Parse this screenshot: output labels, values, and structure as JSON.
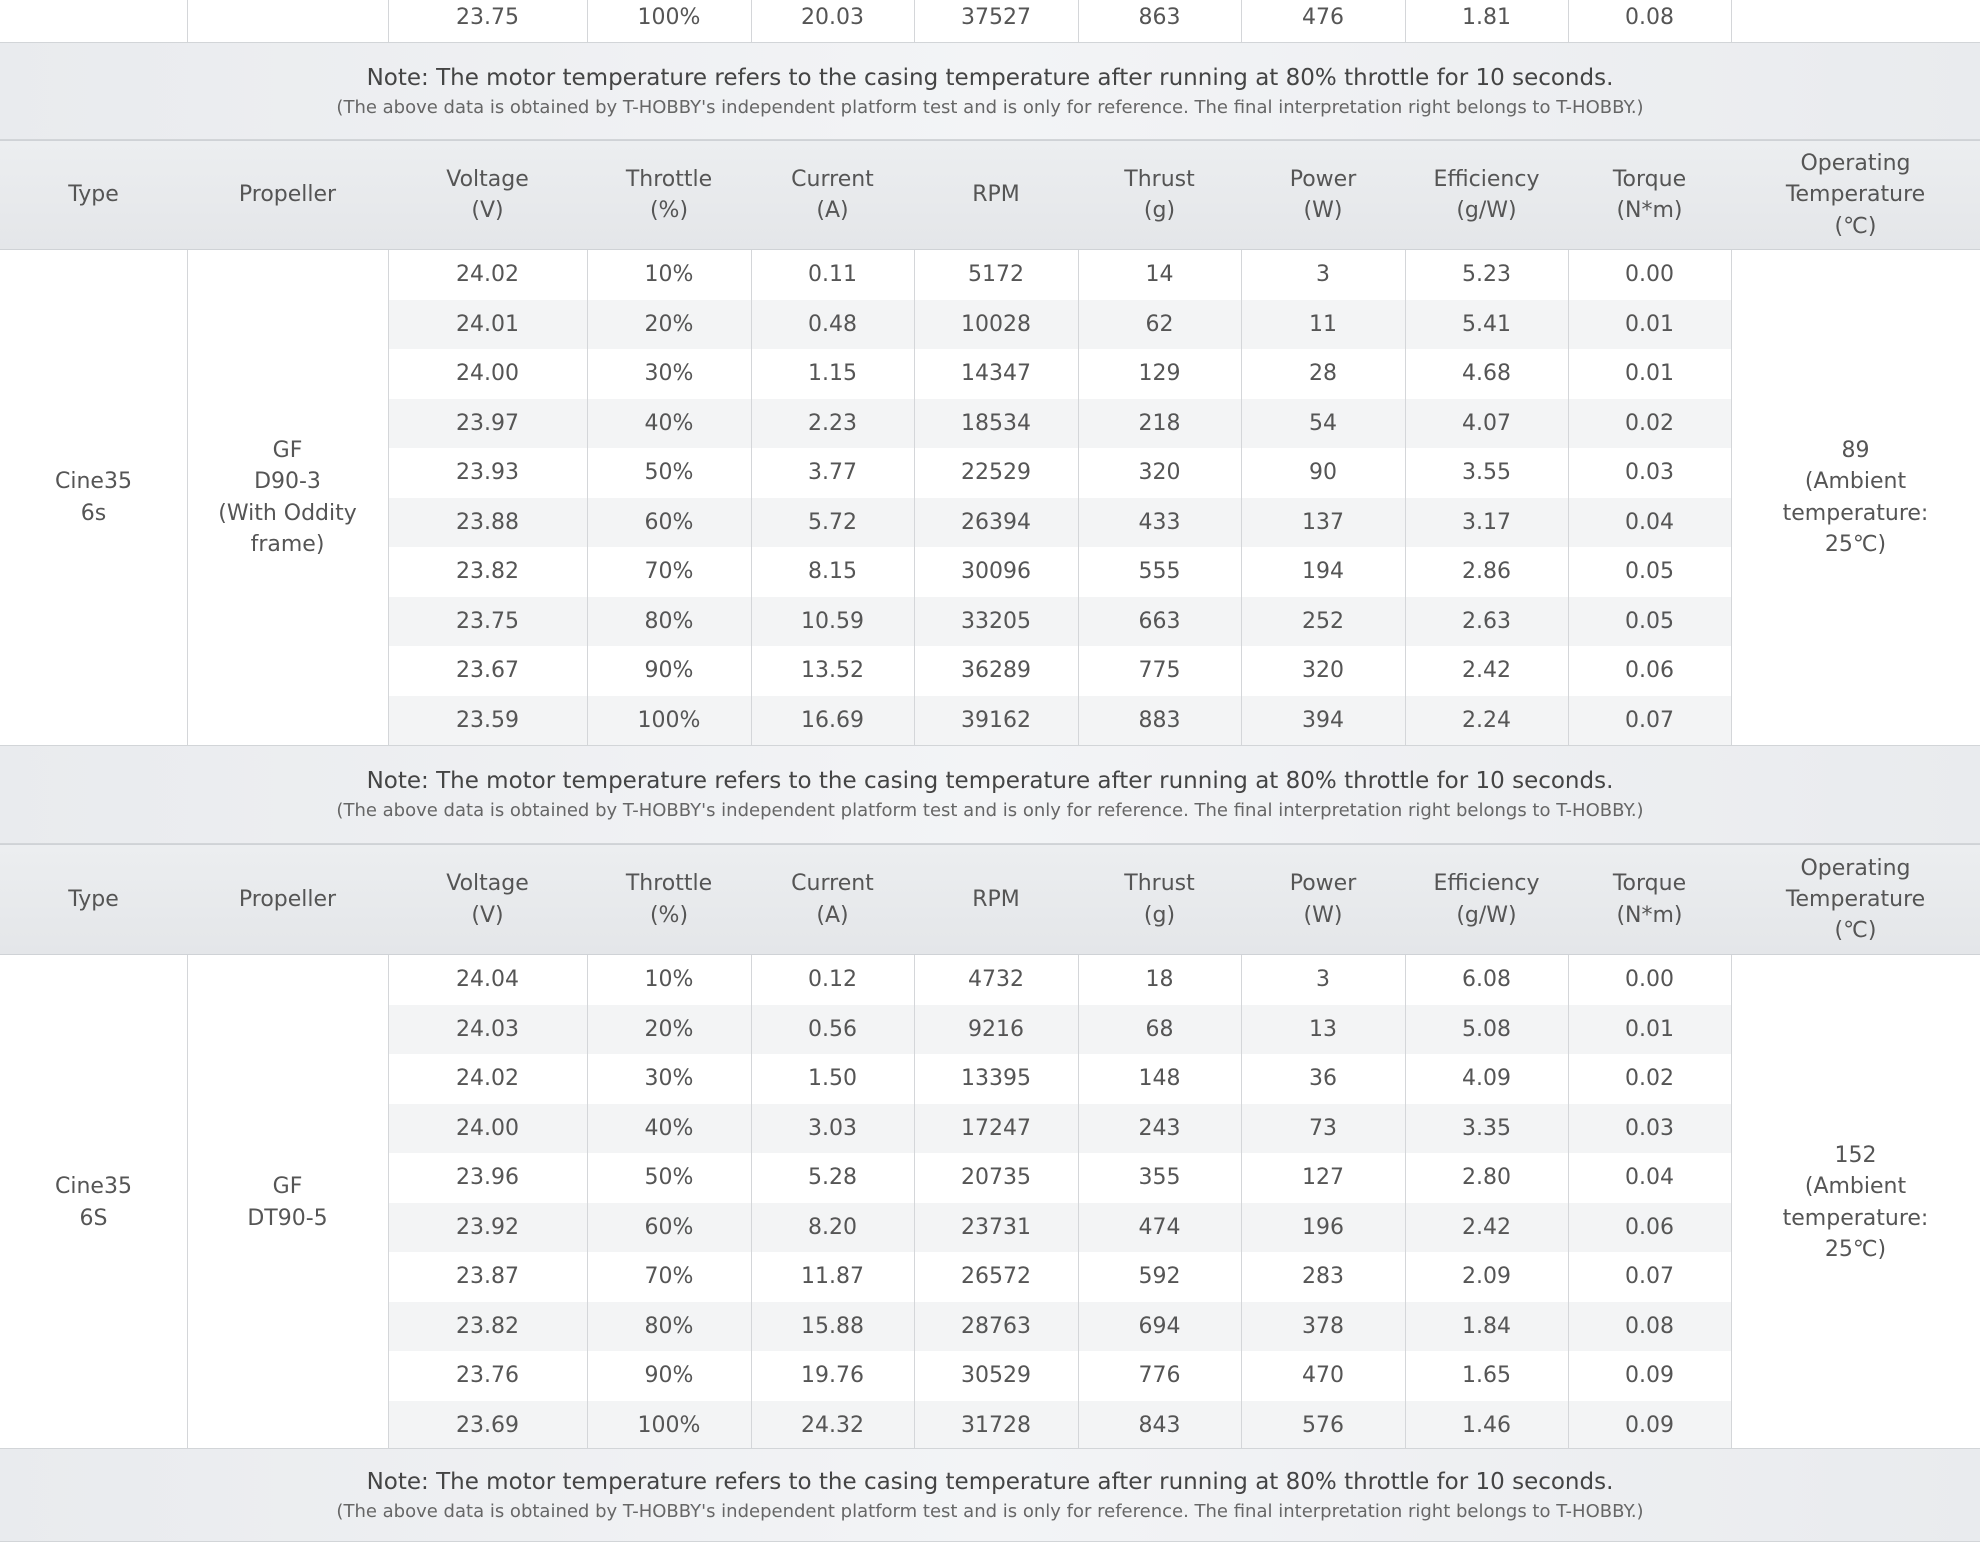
{
  "top_row": [
    "23.75",
    "100%",
    "20.03",
    "37527",
    "863",
    "476",
    "1.81",
    "0.08"
  ],
  "notes": [
    {
      "note": "Note: The motor temperature refers to the casing temperature after running at 80% throttle for 10 seconds.",
      "disclaimer": "(The above data is obtained by T-HOBBY's independent platform test and is only for reference. The final interpretation right belongs to T-HOBBY.)"
    },
    {
      "note": "Note: The motor temperature refers to the casing temperature after running at 80% throttle for 10 seconds.",
      "disclaimer": "(The above data is obtained by T-HOBBY's independent platform test and is only for reference. The final interpretation right belongs to T-HOBBY.)"
    },
    {
      "note": "Note: The motor temperature refers to the casing temperature after running at 80% throttle for 10 seconds.",
      "disclaimer": "(The above data is obtained by T-HOBBY's independent platform test and is only for reference. The final interpretation right belongs to T-HOBBY.)"
    }
  ],
  "tables": [
    {
      "header": [
        "Type",
        "Propeller",
        "Voltage\n(V)",
        "Throttle\n(%)",
        "Current\n(A)",
        "RPM",
        "Thrust\n(g)",
        "Power\n(W)",
        "Efficiency\n(g/W)",
        "Torque\n(N*m)",
        "Operating\nTemperature\n(℃)"
      ],
      "type": "Cine35\n6s",
      "propeller": "GF\nD90-3\n(With Oddity\nframe)",
      "temperature": "89\n(Ambient\ntemperature:\n25℃)",
      "rows": [
        [
          "24.02",
          "10%",
          "0.11",
          "5172",
          "14",
          "3",
          "5.23",
          "0.00"
        ],
        [
          "24.01",
          "20%",
          "0.48",
          "10028",
          "62",
          "11",
          "5.41",
          "0.01"
        ],
        [
          "24.00",
          "30%",
          "1.15",
          "14347",
          "129",
          "28",
          "4.68",
          "0.01"
        ],
        [
          "23.97",
          "40%",
          "2.23",
          "18534",
          "218",
          "54",
          "4.07",
          "0.02"
        ],
        [
          "23.93",
          "50%",
          "3.77",
          "22529",
          "320",
          "90",
          "3.55",
          "0.03"
        ],
        [
          "23.88",
          "60%",
          "5.72",
          "26394",
          "433",
          "137",
          "3.17",
          "0.04"
        ],
        [
          "23.82",
          "70%",
          "8.15",
          "30096",
          "555",
          "194",
          "2.86",
          "0.05"
        ],
        [
          "23.75",
          "80%",
          "10.59",
          "33205",
          "663",
          "252",
          "2.63",
          "0.05"
        ],
        [
          "23.67",
          "90%",
          "13.52",
          "36289",
          "775",
          "320",
          "2.42",
          "0.06"
        ],
        [
          "23.59",
          "100%",
          "16.69",
          "39162",
          "883",
          "394",
          "2.24",
          "0.07"
        ]
      ]
    },
    {
      "header": [
        "Type",
        "Propeller",
        "Voltage\n(V)",
        "Throttle\n(%)",
        "Current\n(A)",
        "RPM",
        "Thrust\n(g)",
        "Power\n(W)",
        "Efficiency\n(g/W)",
        "Torque\n(N*m)",
        "Operating\nTemperature\n(℃)"
      ],
      "type": "Cine35\n6S",
      "propeller": "GF\nDT90-5",
      "temperature": "152\n(Ambient\ntemperature:\n25℃)",
      "rows": [
        [
          "24.04",
          "10%",
          "0.12",
          "4732",
          "18",
          "3",
          "6.08",
          "0.00"
        ],
        [
          "24.03",
          "20%",
          "0.56",
          "9216",
          "68",
          "13",
          "5.08",
          "0.01"
        ],
        [
          "24.02",
          "30%",
          "1.50",
          "13395",
          "148",
          "36",
          "4.09",
          "0.02"
        ],
        [
          "24.00",
          "40%",
          "3.03",
          "17247",
          "243",
          "73",
          "3.35",
          "0.03"
        ],
        [
          "23.96",
          "50%",
          "5.28",
          "20735",
          "355",
          "127",
          "2.80",
          "0.04"
        ],
        [
          "23.92",
          "60%",
          "8.20",
          "23731",
          "474",
          "196",
          "2.42",
          "0.06"
        ],
        [
          "23.87",
          "70%",
          "11.87",
          "26572",
          "592",
          "283",
          "2.09",
          "0.07"
        ],
        [
          "23.82",
          "80%",
          "15.88",
          "28763",
          "694",
          "378",
          "1.84",
          "0.08"
        ],
        [
          "23.76",
          "90%",
          "19.76",
          "30529",
          "776",
          "470",
          "1.65",
          "0.09"
        ],
        [
          "23.69",
          "100%",
          "24.32",
          "31728",
          "843",
          "576",
          "1.46",
          "0.09"
        ]
      ]
    }
  ]
}
